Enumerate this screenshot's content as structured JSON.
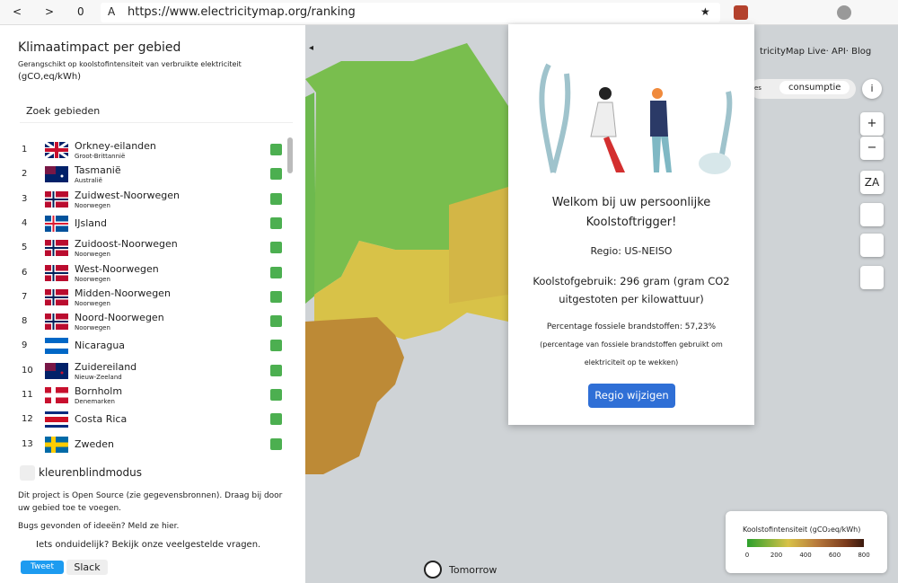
{
  "browser": {
    "back": "<",
    "forward": ">",
    "tabs": "0",
    "reader": "A",
    "url": "https://www.electricitymap.org/ranking",
    "star": "★"
  },
  "sidebar": {
    "title": "Klimaatimpact per gebied",
    "subtitle": "Gerangschikt op koolstofintensiteit van verbruikte elektriciteit",
    "unit": "(gCO,eq/kWh)",
    "search_placeholder": "Zoek gebieden",
    "collapse": "◂",
    "rows": [
      {
        "rank": 1,
        "name": "Orkney-eilanden",
        "country": "Groot-Brittannië"
      },
      {
        "rank": 2,
        "name": "Tasmanië",
        "country": "Australië"
      },
      {
        "rank": 3,
        "name": "Zuidwest-Noorwegen",
        "country": "Noorwegen"
      },
      {
        "rank": 4,
        "name": "IJsland"
      },
      {
        "rank": 5,
        "name": "Zuidoost-Noorwegen",
        "country": "Noorwegen"
      },
      {
        "rank": 6,
        "name": "West-Noorwegen",
        "country": "Noorwegen"
      },
      {
        "rank": 7,
        "name": "Midden-Noorwegen",
        "country": "Noorwegen"
      },
      {
        "rank": 8,
        "name": "Noord-Noorwegen",
        "country": "Noorwegen"
      },
      {
        "rank": 9,
        "name": "Nicaragua"
      },
      {
        "rank": 10,
        "name": "Zuidereiland",
        "country": "Nieuw-Zeeland"
      },
      {
        "rank": 11,
        "name": "Bornholm",
        "country": "Denemarken"
      },
      {
        "rank": 12,
        "name": "Costa Rica"
      },
      {
        "rank": 13,
        "name": "Zweden"
      }
    ],
    "colorblind": "kleurenblindmodus",
    "open_source": "Dit project is Open Source (zie gegevensbronnen). Draag bij door uw gebied toe te voegen.",
    "bugs": "Bugs gevonden of ideeën? Meld ze hier.",
    "faq": "Iets onduidelijk? Bekijk onze veelgestelde vragen.",
    "tweet": "Tweet",
    "slack": "Slack"
  },
  "header_links": "tricityMap Live· API· Blog",
  "toggle": {
    "left": "ies",
    "active": "consumptie",
    "info": "i"
  },
  "map_controls": {
    "zoom_in": "+",
    "zoom_out": "−",
    "language": "ZA"
  },
  "modal": {
    "title": "Welkom bij uw persoonlijke Koolstoftrigger!",
    "region": "Regio: US-NEISO",
    "usage": "Koolstofgebruik: 296 gram (gram CO2 uitgestoten per kilowattuur)",
    "fossil": "Percentage fossiele brandstoffen: 57,23%",
    "fossil_note": "(percentage van fossiele brandstoffen gebruikt om elektriciteit op te wekken)",
    "button": "Regio wijzigen"
  },
  "legend": {
    "title": "Koolstofintensiteit (gCO₂eq/kWh)",
    "range": [
      0,
      800
    ],
    "ticks": [
      0,
      200,
      400,
      600,
      800
    ]
  },
  "timeline": {
    "label": "Tomorrow"
  }
}
